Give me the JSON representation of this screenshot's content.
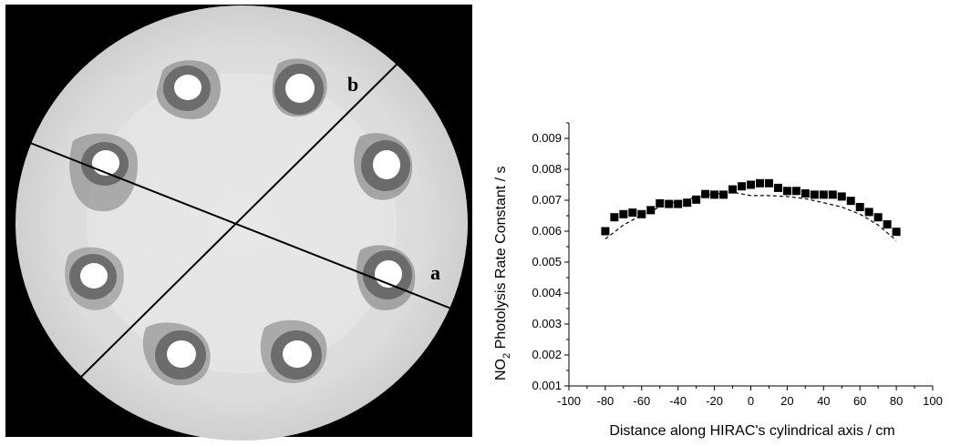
{
  "figure_left": {
    "markers": {
      "a": "a",
      "b": "b"
    }
  },
  "chart_data": {
    "type": "scatter",
    "xlabel": "Distance along HIRAC's cylindrical axis / cm",
    "ylabel_main": "NO",
    "ylabel_sub": "2",
    "ylabel_rest": " Photolysis Rate Constant / s",
    "xlim": [
      -100,
      100
    ],
    "ylim": [
      0.001,
      0.0095
    ],
    "x_ticks": [
      -100,
      -80,
      -60,
      -40,
      -20,
      0,
      20,
      40,
      60,
      80,
      100
    ],
    "y_ticks": [
      0.001,
      0.002,
      0.003,
      0.004,
      0.005,
      0.006,
      0.007,
      0.008,
      0.009
    ],
    "x_tick_labels": [
      "-100",
      "-80",
      "-60",
      "-40",
      "-20",
      "0",
      "20",
      "40",
      "60",
      "80",
      "100"
    ],
    "y_tick_labels": [
      "0.001",
      "0.002",
      "0.003",
      "0.004",
      "0.005",
      "0.006",
      "0.007",
      "0.008",
      "0.009"
    ],
    "series": [
      {
        "marker": "square",
        "x": [
          -80,
          -75,
          -70,
          -65,
          -60,
          -55,
          -50,
          -45,
          -40,
          -35,
          -30,
          -25,
          -20,
          -15,
          -10,
          -5,
          0,
          5,
          10,
          15,
          20,
          25,
          30,
          35,
          40,
          45,
          50,
          55,
          60,
          65,
          70,
          75,
          80
        ],
        "y": [
          0.006,
          0.00645,
          0.00655,
          0.0066,
          0.00655,
          0.00668,
          0.0069,
          0.00688,
          0.00688,
          0.00692,
          0.00702,
          0.0072,
          0.00718,
          0.00718,
          0.00735,
          0.00745,
          0.0075,
          0.00755,
          0.00755,
          0.0074,
          0.0073,
          0.0073,
          0.00722,
          0.00718,
          0.00718,
          0.00718,
          0.00712,
          0.00698,
          0.00678,
          0.00662,
          0.00645,
          0.00622,
          0.00598
        ]
      },
      {
        "style": "dashed",
        "x": [
          -80,
          -70,
          -60,
          -50,
          -40,
          -30,
          -20,
          -10,
          0,
          10,
          20,
          30,
          40,
          50,
          60,
          70,
          80
        ],
        "y": [
          0.00575,
          0.0062,
          0.00652,
          0.00678,
          0.00697,
          0.0071,
          0.0072,
          0.00726,
          0.00715,
          0.00715,
          0.00712,
          0.00705,
          0.00692,
          0.00678,
          0.00655,
          0.0062,
          0.0057
        ]
      }
    ]
  }
}
